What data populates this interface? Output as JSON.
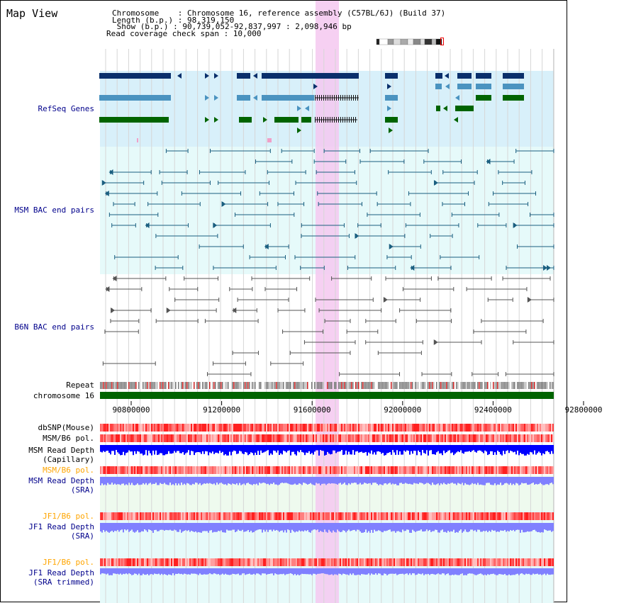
{
  "title": "Map View",
  "header": {
    "chromosome_line": "Chromosome    : Chromosome 16, reference assembly (C57BL/6J) (Build 37)",
    "length_line": "Length (b.p.) : 98,319,150",
    "show_line": " Show (b.p.) : 90,739,052-92,837,997 : 2,098,946 bp",
    "coverage_line": "Read coverage check span : 10,000"
  },
  "tracks": {
    "refseq": "RefSeq Genes",
    "msm_bac": "MSM BAC end pairs",
    "b6n_bac": "B6N BAC end pairs",
    "repeat": "Repeat",
    "chromosome": "chromosome 16",
    "dbsnp": "dbSNP(Mouse)",
    "msm_b6_pol_1": "MSM/B6 pol.",
    "msm_read_depth_cap": "MSM Read Depth\n(Capillary)",
    "msm_b6_pol_2": "MSM/B6 pol.",
    "msm_read_depth_sra": "MSM Read Depth\n(SRA)",
    "jf1_b6_pol_1": "JF1/B6 pol.",
    "jf1_read_depth_sra": "JF1 Read Depth\n(SRA)",
    "jf1_b6_pol_2": "JF1/B6 pol.",
    "jf1_read_depth_trim": "JF1 Read Depth\n(SRA trimmed)"
  },
  "axis": {
    "ticks": [
      "90800000",
      "91200000",
      "91600000",
      "92000000",
      "92400000",
      "92800000"
    ]
  },
  "colors": {
    "refseq_dark": "#0a2f6b",
    "refseq_light": "#4a93c0",
    "refseq_green": "#006400",
    "msm_bac": "#1b5f80",
    "b6n_bac": "#555555",
    "highlight": "#f5c8f0",
    "chromosome": "#006400",
    "msm_depth_cap": "#0000ff",
    "depth_sra": "#8080ff"
  }
}
